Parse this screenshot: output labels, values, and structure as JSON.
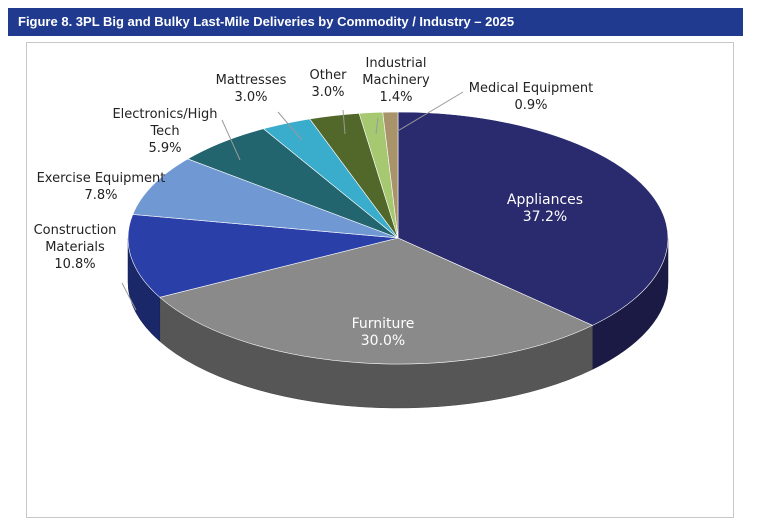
{
  "figure_title": "Figure 8.  3PL Big and Bulky Last-Mile Deliveries by Commodity / Industry – 2025",
  "chart_data": {
    "type": "pie",
    "title": "Figure 8.  3PL Big and Bulky Last-Mile Deliveries by Commodity / Industry – 2025",
    "style": "3d",
    "slices": [
      {
        "label": "Appliances",
        "value": 37.2,
        "value_label": "37.2%",
        "color": "#2a2a6e"
      },
      {
        "label": "Furniture",
        "value": 30.0,
        "value_label": "30.0%",
        "color": "#8a8a8a"
      },
      {
        "label": "Construction Materials",
        "value": 10.8,
        "value_label": "10.8%",
        "color": "#2a3fa8"
      },
      {
        "label": "Exercise Equipment",
        "value": 7.8,
        "value_label": "7.8%",
        "color": "#7099d4"
      },
      {
        "label": "Electronics/High Tech",
        "value": 5.9,
        "value_label": "5.9%",
        "color": "#22656e"
      },
      {
        "label": "Mattresses",
        "value": 3.0,
        "value_label": "3.0%",
        "color": "#3aaccc"
      },
      {
        "label": "Other",
        "value": 3.0,
        "value_label": "3.0%",
        "color": "#52672a"
      },
      {
        "label": "Industrial Machinery",
        "value": 1.4,
        "value_label": "1.4%",
        "color": "#a5c870"
      },
      {
        "label": "Medical Equipment",
        "value": 0.9,
        "value_label": "0.9%",
        "color": "#a8936a"
      }
    ]
  }
}
